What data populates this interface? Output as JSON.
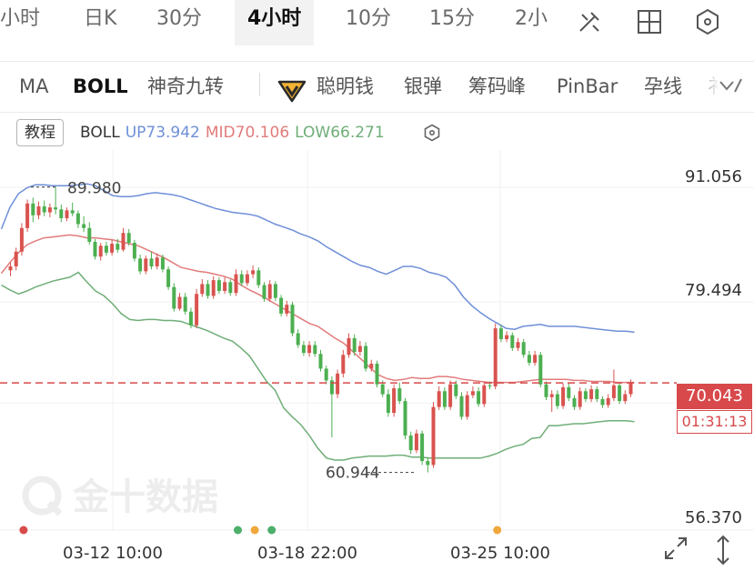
{
  "periods": [
    {
      "label": "小时",
      "active": false
    },
    {
      "label": "日K",
      "active": false
    },
    {
      "label": "30分",
      "active": false
    },
    {
      "label": "4小时",
      "active": true
    },
    {
      "label": "10分",
      "active": false
    },
    {
      "label": "15分",
      "active": false
    },
    {
      "label": "2小",
      "active": false
    }
  ],
  "indicators": [
    {
      "label": "MA",
      "active": false
    },
    {
      "label": "BOLL",
      "active": true
    },
    {
      "label": "神奇九转",
      "active": false
    },
    {
      "label": "聪明钱",
      "active": false
    },
    {
      "label": "银弹",
      "active": false
    },
    {
      "label": "筹码峰",
      "active": false
    },
    {
      "label": "PinBar",
      "active": false
    },
    {
      "label": "孕线",
      "active": false
    },
    {
      "label": "衤",
      "active": false
    }
  ],
  "tutorial_label": "教程",
  "legend": {
    "name": "BOLL",
    "up": "UP73.942",
    "mid": "MID70.106",
    "low": "LOW66.271"
  },
  "watermark": "金十数据",
  "colors": {
    "up_band": "#6f8fd8",
    "mid_band": "#e27b7b",
    "low_band": "#6fae78",
    "candle_up": "#d9534f",
    "candle_down": "#4caf50",
    "last_price": "#d8494b",
    "dot_red": "#d94a4a",
    "dot_green": "#4caf6a",
    "dot_orange": "#f0a83c"
  },
  "icons": [
    "draw-line-icon",
    "layout-grid-icon",
    "settings-hex-icon",
    "more-indicators-icon",
    "settings-icon",
    "fullscreen-icon",
    "fit-vertical-icon"
  ],
  "last_price_label": "70.043",
  "countdown": "01:31:13",
  "chart_data": {
    "type": "candlestick",
    "y_tick_labels": [
      "91.056",
      "79.494",
      "56.370"
    ],
    "ylim": [
      56.37,
      91.056
    ],
    "x_tick_labels": [
      "03-12 10:00",
      "03-18 22:00",
      "03-25 10:00"
    ],
    "high_marker": "89.980",
    "low_marker": "60.944",
    "last_price": 70.043,
    "bollinger": {
      "up": 73.942,
      "mid": 70.106,
      "low": 66.271
    },
    "candles": [
      [
        81.5,
        82.3,
        80.9,
        81.9
      ],
      [
        81.9,
        83.8,
        81.5,
        83.4
      ],
      [
        83.4,
        86.3,
        83.0,
        85.8
      ],
      [
        85.8,
        88.7,
        85.4,
        88.3
      ],
      [
        88.3,
        88.9,
        86.4,
        87.1
      ],
      [
        87.1,
        88.5,
        86.7,
        88.0
      ],
      [
        88.0,
        88.6,
        87.0,
        87.4
      ],
      [
        87.4,
        88.3,
        86.9,
        87.9
      ],
      [
        87.9,
        89.98,
        87.2,
        87.7
      ],
      [
        87.7,
        88.2,
        86.4,
        86.8
      ],
      [
        86.8,
        87.9,
        86.5,
        87.6
      ],
      [
        87.6,
        88.4,
        87.0,
        87.3
      ],
      [
        87.3,
        87.6,
        85.8,
        86.2
      ],
      [
        86.2,
        87.0,
        85.4,
        85.8
      ],
      [
        85.8,
        86.4,
        84.1,
        84.4
      ],
      [
        84.4,
        84.7,
        82.6,
        82.9
      ],
      [
        82.9,
        84.3,
        82.5,
        84.0
      ],
      [
        84.0,
        84.4,
        83.0,
        83.3
      ],
      [
        83.3,
        84.6,
        83.0,
        84.2
      ],
      [
        84.2,
        84.7,
        83.3,
        83.6
      ],
      [
        83.6,
        85.8,
        83.4,
        85.3
      ],
      [
        85.3,
        85.7,
        84.0,
        84.3
      ],
      [
        84.3,
        84.6,
        82.4,
        82.7
      ],
      [
        82.7,
        83.1,
        81.1,
        81.4
      ],
      [
        81.4,
        83.0,
        81.1,
        82.7
      ],
      [
        82.7,
        83.4,
        81.6,
        81.9
      ],
      [
        81.9,
        83.2,
        81.6,
        82.8
      ],
      [
        82.8,
        83.1,
        81.3,
        81.6
      ],
      [
        81.6,
        81.9,
        79.5,
        79.8
      ],
      [
        79.8,
        80.2,
        77.3,
        77.6
      ],
      [
        77.6,
        79.2,
        77.4,
        78.8
      ],
      [
        78.8,
        79.2,
        77.0,
        77.3
      ],
      [
        77.3,
        77.7,
        75.6,
        75.9
      ],
      [
        75.9,
        79.6,
        75.6,
        79.1
      ],
      [
        79.1,
        80.6,
        78.8,
        80.1
      ],
      [
        80.1,
        80.5,
        78.6,
        78.9
      ],
      [
        78.9,
        80.9,
        78.6,
        80.5
      ],
      [
        80.5,
        80.8,
        79.1,
        79.4
      ],
      [
        79.4,
        80.8,
        79.1,
        80.3
      ],
      [
        80.3,
        80.6,
        78.9,
        79.2
      ],
      [
        79.2,
        81.6,
        78.9,
        81.1
      ],
      [
        81.1,
        81.5,
        79.9,
        80.2
      ],
      [
        80.2,
        81.5,
        79.9,
        81.1
      ],
      [
        81.1,
        82.0,
        80.7,
        81.5
      ],
      [
        81.5,
        81.8,
        79.7,
        80.0
      ],
      [
        80.0,
        80.3,
        78.3,
        78.6
      ],
      [
        78.6,
        80.5,
        78.3,
        80.1
      ],
      [
        80.1,
        80.4,
        78.4,
        78.7
      ],
      [
        78.7,
        79.0,
        76.8,
        77.1
      ],
      [
        77.1,
        78.4,
        76.8,
        78.0
      ],
      [
        78.0,
        78.3,
        74.8,
        75.1
      ],
      [
        75.1,
        75.5,
        73.6,
        73.9
      ],
      [
        73.9,
        74.3,
        72.8,
        73.1
      ],
      [
        73.1,
        74.3,
        72.7,
        73.9
      ],
      [
        73.9,
        74.3,
        72.7,
        73.0
      ],
      [
        73.0,
        73.4,
        71.2,
        71.5
      ],
      [
        71.5,
        71.8,
        69.9,
        70.3
      ],
      [
        70.3,
        70.7,
        64.5,
        68.9
      ],
      [
        68.9,
        71.4,
        68.5,
        71.0
      ],
      [
        71.0,
        73.4,
        70.6,
        72.9
      ],
      [
        72.9,
        75.1,
        72.6,
        74.6
      ],
      [
        74.6,
        75.0,
        72.8,
        73.2
      ],
      [
        73.2,
        74.3,
        72.8,
        73.8
      ],
      [
        73.8,
        74.2,
        71.2,
        71.5
      ],
      [
        71.5,
        72.4,
        71.2,
        72.0
      ],
      [
        72.0,
        72.3,
        69.6,
        69.9
      ],
      [
        69.9,
        70.3,
        68.6,
        68.9
      ],
      [
        68.9,
        69.4,
        66.6,
        67.0
      ],
      [
        67.0,
        69.9,
        66.6,
        69.5
      ],
      [
        69.5,
        70.1,
        67.9,
        68.2
      ],
      [
        68.2,
        68.5,
        64.3,
        64.7
      ],
      [
        64.7,
        65.1,
        62.8,
        63.2
      ],
      [
        63.2,
        65.3,
        62.9,
        64.9
      ],
      [
        64.9,
        65.2,
        61.7,
        62.1
      ],
      [
        62.1,
        62.5,
        60.944,
        61.7
      ],
      [
        61.7,
        68.1,
        61.4,
        67.6
      ],
      [
        67.6,
        69.7,
        67.3,
        69.2
      ],
      [
        69.2,
        69.6,
        67.3,
        67.6
      ],
      [
        67.6,
        70.3,
        67.3,
        69.9
      ],
      [
        69.9,
        70.3,
        68.4,
        68.7
      ],
      [
        68.7,
        69.1,
        66.3,
        66.6
      ],
      [
        66.6,
        69.2,
        66.3,
        68.8
      ],
      [
        68.8,
        69.7,
        68.5,
        69.2
      ],
      [
        69.2,
        69.6,
        67.6,
        67.9
      ],
      [
        67.9,
        70.2,
        67.6,
        69.8
      ],
      [
        69.8,
        70.2,
        69.4,
        69.7
      ],
      [
        69.7,
        76.1,
        69.4,
        75.6
      ],
      [
        75.6,
        76.0,
        74.2,
        74.5
      ],
      [
        74.5,
        75.3,
        74.2,
        74.9
      ],
      [
        74.9,
        75.2,
        73.3,
        73.6
      ],
      [
        73.6,
        74.6,
        73.3,
        74.2
      ],
      [
        74.2,
        74.5,
        72.6,
        72.9
      ],
      [
        72.9,
        73.3,
        71.8,
        72.1
      ],
      [
        72.1,
        73.3,
        71.8,
        72.9
      ],
      [
        72.9,
        73.2,
        69.6,
        69.9
      ],
      [
        69.9,
        70.2,
        68.3,
        68.6
      ],
      [
        68.6,
        69.3,
        67.1,
        68.9
      ],
      [
        68.9,
        69.3,
        67.4,
        67.7
      ],
      [
        67.7,
        70.0,
        67.4,
        69.6
      ],
      [
        69.6,
        70.0,
        68.2,
        68.5
      ],
      [
        68.5,
        68.8,
        67.3,
        67.6
      ],
      [
        67.6,
        69.6,
        67.3,
        69.2
      ],
      [
        69.2,
        69.5,
        68.1,
        68.4
      ],
      [
        68.4,
        69.8,
        68.1,
        69.4
      ],
      [
        69.4,
        69.7,
        68.1,
        68.4
      ],
      [
        68.4,
        68.7,
        67.5,
        67.8
      ],
      [
        67.8,
        68.9,
        67.5,
        68.5
      ],
      [
        68.5,
        71.4,
        68.2,
        69.8
      ],
      [
        69.8,
        70.1,
        67.9,
        68.2
      ],
      [
        68.2,
        69.3,
        67.9,
        68.9
      ],
      [
        68.9,
        70.4,
        68.6,
        70.043
      ]
    ],
    "bands": {
      "up": [
        85.7,
        87.9,
        89.3,
        89.9,
        90.2,
        90.2,
        90.1,
        90.1,
        90.1,
        90.2,
        90.3,
        90.1,
        89.6,
        89.1,
        89.0,
        89.0,
        89.1,
        89.3,
        89.4,
        89.3,
        89.2,
        89.0,
        88.7,
        88.4,
        88.1,
        87.8,
        87.6,
        87.4,
        87.3,
        87.2,
        87.0,
        86.6,
        86.2,
        85.9,
        85.6,
        85.2,
        84.9,
        84.5,
        83.9,
        83.4,
        82.9,
        82.4,
        82.0,
        81.8,
        81.4,
        81.1,
        81.5,
        81.9,
        81.9,
        81.7,
        81.3,
        81.1,
        80.8,
        80.0,
        78.8,
        77.9,
        77.2,
        76.6,
        76.1,
        75.6,
        75.5,
        75.8,
        75.9,
        76.0,
        75.8,
        75.8,
        75.8,
        75.8,
        75.7,
        75.6,
        75.5,
        75.4,
        75.3,
        75.3,
        75.2
      ],
      "mid": [
        81.2,
        82.3,
        83.3,
        84.1,
        84.5,
        84.8,
        84.9,
        85.0,
        85.1,
        85.0,
        84.8,
        84.8,
        84.7,
        84.6,
        84.4,
        84.2,
        84.0,
        83.6,
        83.2,
        82.8,
        82.3,
        81.8,
        81.6,
        81.4,
        81.3,
        81.1,
        80.9,
        80.6,
        80.0,
        79.5,
        79.1,
        78.6,
        78.1,
        77.6,
        77.1,
        76.6,
        76.1,
        75.8,
        75.2,
        74.6,
        74.1,
        73.3,
        72.5,
        71.7,
        70.9,
        70.5,
        70.3,
        70.4,
        70.6,
        70.5,
        70.5,
        70.7,
        70.7,
        70.6,
        70.4,
        70.3,
        70.2,
        70.1,
        70.1,
        70.1,
        70.1,
        70.2,
        70.3,
        70.4,
        70.4,
        70.4,
        70.4,
        70.3,
        70.3,
        70.2,
        70.2,
        70.2,
        70.1,
        70.1,
        70.1
      ],
      "low": [
        80.0,
        79.5,
        79.1,
        79.4,
        79.8,
        80.1,
        80.4,
        80.6,
        80.8,
        81.3,
        80.3,
        79.4,
        78.9,
        78.1,
        77.1,
        76.5,
        76.4,
        76.5,
        76.5,
        76.4,
        76.4,
        76.3,
        76.0,
        75.7,
        75.4,
        75.0,
        74.6,
        74.3,
        73.6,
        72.8,
        71.5,
        70.2,
        69.3,
        67.5,
        66.6,
        65.8,
        64.7,
        63.4,
        62.4,
        62.2,
        62.2,
        62.4,
        62.5,
        62.6,
        62.6,
        62.6,
        62.7,
        62.7,
        62.5,
        62.5,
        62.4,
        62.4,
        62.4,
        62.4,
        62.4,
        62.4,
        62.4,
        62.6,
        62.9,
        63.3,
        63.6,
        63.8,
        64.4,
        64.5,
        65.7,
        65.7,
        65.8,
        65.9,
        65.9,
        66.0,
        66.1,
        66.2,
        66.2,
        66.2,
        66.1
      ],
      "band_start_index": 0
    },
    "event_dots": [
      {
        "index": 2,
        "color": "red"
      },
      {
        "index": 40,
        "color": "green"
      },
      {
        "index": 43,
        "color": "orange"
      },
      {
        "index": 46,
        "color": "green"
      },
      {
        "index": 86,
        "color": "orange"
      }
    ]
  }
}
